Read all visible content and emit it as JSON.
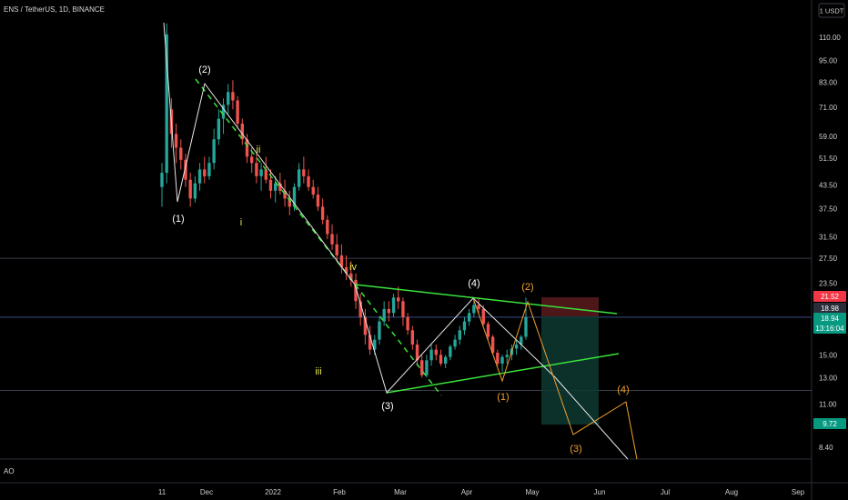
{
  "header": {
    "symbol": "ENS / TetherUS, 1D, BINANCE",
    "currency_button": "1 USDT"
  },
  "indicator": {
    "label": "AO"
  },
  "chart_data": {
    "type": "candlestick",
    "scale": "log",
    "y_ticks": [
      "110.00",
      "95.00",
      "83.00",
      "71.00",
      "59.00",
      "51.50",
      "43.50",
      "37.50",
      "31.50",
      "27.50",
      "23.50",
      "15.00",
      "13.00",
      "11.00",
      "8.40"
    ],
    "x_ticks": [
      "11",
      "Dec",
      "2022",
      "Feb",
      "Mar",
      "Apr",
      "May",
      "Jun",
      "Jul",
      "Aug",
      "Sep"
    ],
    "price_tags": [
      {
        "label": "21.52",
        "color": "#f23645"
      },
      {
        "label": "18.98",
        "color": "#2a2e39"
      },
      {
        "label": "18.94",
        "color": "#089981"
      },
      {
        "label": "13:16:04",
        "color": "#089981"
      },
      {
        "label": "9.72",
        "color": "#089981"
      }
    ],
    "horizontal_levels": [
      27.5,
      19.0,
      12.0
    ],
    "candles": [
      [
        43,
        50,
        38,
        47
      ],
      [
        47,
        120,
        44,
        112
      ],
      [
        70,
        75,
        55,
        60
      ],
      [
        60,
        64,
        50,
        55
      ],
      [
        55,
        58,
        48,
        51
      ],
      [
        51,
        53,
        43,
        45
      ],
      [
        45,
        47,
        38,
        40
      ],
      [
        40,
        46,
        39,
        44
      ],
      [
        44,
        50,
        42,
        48
      ],
      [
        48,
        52,
        44,
        46
      ],
      [
        46,
        52,
        45,
        50
      ],
      [
        50,
        62,
        48,
        58
      ],
      [
        58,
        70,
        56,
        66
      ],
      [
        66,
        75,
        60,
        72
      ],
      [
        72,
        82,
        68,
        78
      ],
      [
        78,
        84,
        70,
        74
      ],
      [
        74,
        76,
        62,
        64
      ],
      [
        64,
        66,
        56,
        58
      ],
      [
        58,
        60,
        50,
        52
      ],
      [
        52,
        55,
        47,
        50
      ],
      [
        50,
        53,
        44,
        46
      ],
      [
        46,
        50,
        42,
        48
      ],
      [
        48,
        52,
        44,
        45
      ],
      [
        45,
        48,
        40,
        42
      ],
      [
        42,
        46,
        39,
        44
      ],
      [
        44,
        47,
        41,
        42
      ],
      [
        42,
        45,
        38,
        40
      ],
      [
        40,
        42,
        36,
        38
      ],
      [
        38,
        44,
        37,
        43
      ],
      [
        43,
        50,
        42,
        48
      ],
      [
        48,
        52,
        44,
        46
      ],
      [
        46,
        48,
        42,
        43
      ],
      [
        43,
        45,
        40,
        41
      ],
      [
        41,
        43,
        37,
        38
      ],
      [
        38,
        40,
        34,
        35
      ],
      [
        35,
        36,
        31,
        32
      ],
      [
        32,
        34,
        29,
        30
      ],
      [
        30,
        32,
        27,
        28
      ],
      [
        28,
        30,
        25,
        26
      ],
      [
        26,
        28,
        24,
        25
      ],
      [
        25,
        27,
        23,
        24
      ],
      [
        24,
        25,
        20,
        21
      ],
      [
        21,
        22,
        18,
        19
      ],
      [
        19,
        20,
        16,
        17
      ],
      [
        17,
        18,
        15,
        15.5
      ],
      [
        15.5,
        17,
        15,
        16.5
      ],
      [
        16.5,
        19,
        16,
        18.5
      ],
      [
        18.5,
        21,
        18,
        20
      ],
      [
        20,
        21,
        18.5,
        19.5
      ],
      [
        19.5,
        22,
        19,
        21.5
      ],
      [
        21.5,
        23,
        20,
        21
      ],
      [
        21,
        21.5,
        18,
        19
      ],
      [
        19,
        19.5,
        17,
        17.5
      ],
      [
        17.5,
        18,
        15.5,
        16
      ],
      [
        16,
        16.5,
        14,
        14.5
      ],
      [
        14.5,
        15,
        13,
        13.2
      ],
      [
        13.2,
        15,
        13,
        14.5
      ],
      [
        14.5,
        16,
        14,
        15.5
      ],
      [
        15.5,
        16,
        14.5,
        15
      ],
      [
        15,
        15.5,
        14,
        14.2
      ],
      [
        14.2,
        15,
        13.8,
        14.8
      ],
      [
        14.8,
        16,
        14.5,
        15.8
      ],
      [
        15.8,
        17,
        15.5,
        16.5
      ],
      [
        16.5,
        18,
        16,
        17.5
      ],
      [
        17.5,
        19,
        17,
        18.5
      ],
      [
        18.5,
        20,
        18,
        19.5
      ],
      [
        19.5,
        21,
        19,
        20.5
      ],
      [
        20.5,
        21.5,
        19.5,
        20
      ],
      [
        20,
        20.5,
        18,
        18.2
      ],
      [
        18.2,
        18.5,
        16.5,
        16.8
      ],
      [
        16.8,
        17,
        15,
        15.2
      ],
      [
        15.2,
        15.5,
        14,
        14.2
      ],
      [
        14.2,
        15,
        13.5,
        14.8
      ],
      [
        14.8,
        15.5,
        14.2,
        15
      ],
      [
        15,
        16,
        14.5,
        15.6
      ],
      [
        15.6,
        16.5,
        15,
        16
      ],
      [
        16,
        17,
        15.5,
        16.8
      ],
      [
        16.8,
        21.5,
        16.5,
        19
      ]
    ]
  },
  "wave_labels": [
    {
      "text": "(1)",
      "color": "#ffffff"
    },
    {
      "text": "(2)",
      "color": "#ffffff"
    },
    {
      "text": "i",
      "color": "#e8e84a"
    },
    {
      "text": "ii",
      "color": "#e8e84a"
    },
    {
      "text": "iii",
      "color": "#e8e84a"
    },
    {
      "text": "iv",
      "color": "#e8e84a"
    },
    {
      "text": "(3)",
      "color": "#ffffff"
    },
    {
      "text": "(4)",
      "color": "#ffffff"
    },
    {
      "text": "(1)",
      "color": "#f0a030"
    },
    {
      "text": "(2)",
      "color": "#f0a030"
    },
    {
      "text": "(3)",
      "color": "#f0a030"
    },
    {
      "text": "(4)",
      "color": "#f0a030"
    }
  ],
  "colors": {
    "up": "#26a69a",
    "down": "#ef5350",
    "trendline": "#39e33a",
    "projection": "#f0a030",
    "wave": "#e8e8e8"
  }
}
